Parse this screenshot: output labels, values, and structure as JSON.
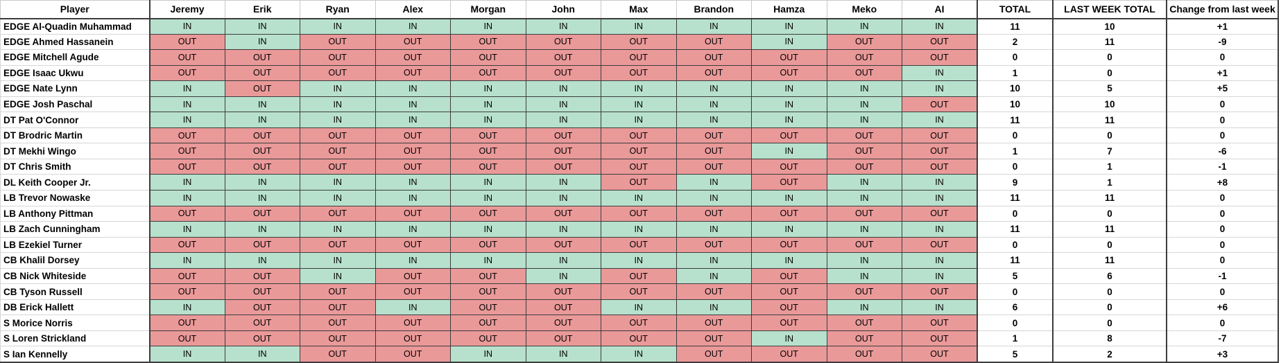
{
  "table": {
    "columns": [
      "Player",
      "Jeremy",
      "Erik",
      "Ryan",
      "Alex",
      "Morgan",
      "John",
      "Max",
      "Brandon",
      "Hamza",
      "Meko",
      "AI",
      "TOTAL",
      "LAST WEEK TOTAL",
      "Change from last week"
    ],
    "rows": [
      {
        "player": "EDGE Al-Quadin Muhammad",
        "votes": [
          "IN",
          "IN",
          "IN",
          "IN",
          "IN",
          "IN",
          "IN",
          "IN",
          "IN",
          "IN",
          "IN"
        ],
        "total": "11",
        "last_week_total": "10",
        "change": "+1"
      },
      {
        "player": "EDGE Ahmed Hassanein",
        "votes": [
          "OUT",
          "IN",
          "OUT",
          "OUT",
          "OUT",
          "OUT",
          "OUT",
          "OUT",
          "IN",
          "OUT",
          "OUT"
        ],
        "total": "2",
        "last_week_total": "11",
        "change": "-9"
      },
      {
        "player": "EDGE Mitchell Agude",
        "votes": [
          "OUT",
          "OUT",
          "OUT",
          "OUT",
          "OUT",
          "OUT",
          "OUT",
          "OUT",
          "OUT",
          "OUT",
          "OUT"
        ],
        "total": "0",
        "last_week_total": "0",
        "change": "0"
      },
      {
        "player": "EDGE Isaac Ukwu",
        "votes": [
          "OUT",
          "OUT",
          "OUT",
          "OUT",
          "OUT",
          "OUT",
          "OUT",
          "OUT",
          "OUT",
          "OUT",
          "IN"
        ],
        "total": "1",
        "last_week_total": "0",
        "change": "+1"
      },
      {
        "player": "EDGE Nate Lynn",
        "votes": [
          "IN",
          "OUT",
          "IN",
          "IN",
          "IN",
          "IN",
          "IN",
          "IN",
          "IN",
          "IN",
          "IN"
        ],
        "total": "10",
        "last_week_total": "5",
        "change": "+5"
      },
      {
        "player": "EDGE Josh Paschal",
        "votes": [
          "IN",
          "IN",
          "IN",
          "IN",
          "IN",
          "IN",
          "IN",
          "IN",
          "IN",
          "IN",
          "OUT"
        ],
        "total": "10",
        "last_week_total": "10",
        "change": "0"
      },
      {
        "player": "DT Pat O'Connor",
        "votes": [
          "IN",
          "IN",
          "IN",
          "IN",
          "IN",
          "IN",
          "IN",
          "IN",
          "IN",
          "IN",
          "IN"
        ],
        "total": "11",
        "last_week_total": "11",
        "change": "0"
      },
      {
        "player": "DT Brodric Martin",
        "votes": [
          "OUT",
          "OUT",
          "OUT",
          "OUT",
          "OUT",
          "OUT",
          "OUT",
          "OUT",
          "OUT",
          "OUT",
          "OUT"
        ],
        "total": "0",
        "last_week_total": "0",
        "change": "0"
      },
      {
        "player": "DT Mekhi Wingo",
        "votes": [
          "OUT",
          "OUT",
          "OUT",
          "OUT",
          "OUT",
          "OUT",
          "OUT",
          "OUT",
          "IN",
          "OUT",
          "OUT"
        ],
        "total": "1",
        "last_week_total": "7",
        "change": "-6"
      },
      {
        "player": "DT Chris Smith",
        "votes": [
          "OUT",
          "OUT",
          "OUT",
          "OUT",
          "OUT",
          "OUT",
          "OUT",
          "OUT",
          "OUT",
          "OUT",
          "OUT"
        ],
        "total": "0",
        "last_week_total": "1",
        "change": "-1"
      },
      {
        "player": "DL Keith Cooper Jr.",
        "votes": [
          "IN",
          "IN",
          "IN",
          "IN",
          "IN",
          "IN",
          "OUT",
          "IN",
          "OUT",
          "IN",
          "IN"
        ],
        "total": "9",
        "last_week_total": "1",
        "change": "+8"
      },
      {
        "player": "LB Trevor Nowaske",
        "votes": [
          "IN",
          "IN",
          "IN",
          "IN",
          "IN",
          "IN",
          "IN",
          "IN",
          "IN",
          "IN",
          "IN"
        ],
        "total": "11",
        "last_week_total": "11",
        "change": "0"
      },
      {
        "player": "LB Anthony Pittman",
        "votes": [
          "OUT",
          "OUT",
          "OUT",
          "OUT",
          "OUT",
          "OUT",
          "OUT",
          "OUT",
          "OUT",
          "OUT",
          "OUT"
        ],
        "total": "0",
        "last_week_total": "0",
        "change": "0"
      },
      {
        "player": "LB Zach Cunningham",
        "votes": [
          "IN",
          "IN",
          "IN",
          "IN",
          "IN",
          "IN",
          "IN",
          "IN",
          "IN",
          "IN",
          "IN"
        ],
        "total": "11",
        "last_week_total": "11",
        "change": "0"
      },
      {
        "player": "LB Ezekiel Turner",
        "votes": [
          "OUT",
          "OUT",
          "OUT",
          "OUT",
          "OUT",
          "OUT",
          "OUT",
          "OUT",
          "OUT",
          "OUT",
          "OUT"
        ],
        "total": "0",
        "last_week_total": "0",
        "change": "0"
      },
      {
        "player": "CB Khalil Dorsey",
        "votes": [
          "IN",
          "IN",
          "IN",
          "IN",
          "IN",
          "IN",
          "IN",
          "IN",
          "IN",
          "IN",
          "IN"
        ],
        "total": "11",
        "last_week_total": "11",
        "change": "0"
      },
      {
        "player": "CB Nick Whiteside",
        "votes": [
          "OUT",
          "OUT",
          "IN",
          "OUT",
          "OUT",
          "IN",
          "OUT",
          "IN",
          "OUT",
          "IN",
          "IN"
        ],
        "total": "5",
        "last_week_total": "6",
        "change": "-1"
      },
      {
        "player": "CB Tyson Russell",
        "votes": [
          "OUT",
          "OUT",
          "OUT",
          "OUT",
          "OUT",
          "OUT",
          "OUT",
          "OUT",
          "OUT",
          "OUT",
          "OUT"
        ],
        "total": "0",
        "last_week_total": "0",
        "change": "0"
      },
      {
        "player": "DB Erick Hallett",
        "votes": [
          "IN",
          "OUT",
          "OUT",
          "IN",
          "OUT",
          "OUT",
          "IN",
          "IN",
          "OUT",
          "IN",
          "IN"
        ],
        "total": "6",
        "last_week_total": "0",
        "change": "+6"
      },
      {
        "player": "S Morice Norris",
        "votes": [
          "OUT",
          "OUT",
          "OUT",
          "OUT",
          "OUT",
          "OUT",
          "OUT",
          "OUT",
          "OUT",
          "OUT",
          "OUT"
        ],
        "total": "0",
        "last_week_total": "0",
        "change": "0"
      },
      {
        "player": "S Loren Strickland",
        "votes": [
          "OUT",
          "OUT",
          "OUT",
          "OUT",
          "OUT",
          "OUT",
          "OUT",
          "OUT",
          "IN",
          "OUT",
          "OUT"
        ],
        "total": "1",
        "last_week_total": "8",
        "change": "-7"
      },
      {
        "player": "S Ian Kennelly",
        "votes": [
          "IN",
          "IN",
          "OUT",
          "OUT",
          "IN",
          "IN",
          "IN",
          "OUT",
          "OUT",
          "OUT",
          "OUT"
        ],
        "total": "5",
        "last_week_total": "2",
        "change": "+3"
      }
    ]
  },
  "colors": {
    "in_bg": "#b7e1cd",
    "out_bg": "#ea9999",
    "in_label": "IN",
    "out_label": "OUT"
  }
}
